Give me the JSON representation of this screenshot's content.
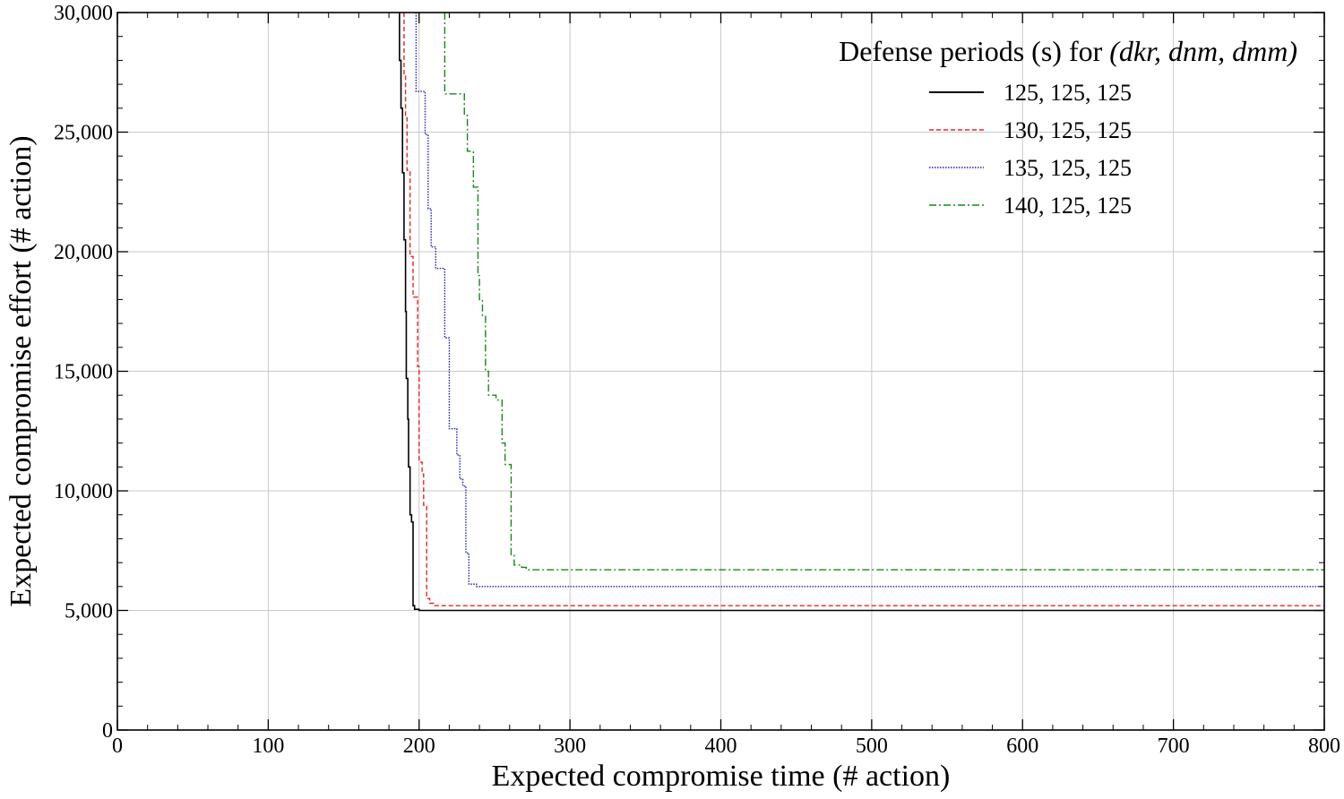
{
  "chart_data": {
    "type": "line",
    "title": "",
    "xlabel": "Expected compromise time (# action)",
    "ylabel": "Expected compromise effort (# action)",
    "xlim": [
      0,
      800
    ],
    "ylim": [
      0,
      30000
    ],
    "x_ticks": [
      0,
      100,
      200,
      300,
      400,
      500,
      600,
      700,
      800
    ],
    "x_tick_labels": [
      "0",
      "100",
      "200",
      "300",
      "400",
      "500",
      "600",
      "700",
      "800"
    ],
    "y_ticks": [
      0,
      5000,
      10000,
      15000,
      20000,
      25000,
      30000
    ],
    "y_tick_labels": [
      "0",
      "5,000",
      "10,000",
      "15,000",
      "20,000",
      "25,000",
      "30,000"
    ],
    "grid": true,
    "legend": {
      "title_prefix": "Defense periods (s) for ",
      "title_vars": "(dkr, dnm, dmm)",
      "placement": "top-right"
    },
    "series": [
      {
        "name": "125, 125, 125",
        "color": "#000000",
        "style": "solid",
        "points": [
          [
            187,
            30000
          ],
          [
            187,
            28000
          ],
          [
            188,
            28000
          ],
          [
            188,
            26000
          ],
          [
            189,
            26000
          ],
          [
            189,
            23300
          ],
          [
            190,
            23300
          ],
          [
            190,
            20500
          ],
          [
            191,
            20500
          ],
          [
            191,
            17500
          ],
          [
            191.5,
            17500
          ],
          [
            191.5,
            14700
          ],
          [
            192.5,
            14700
          ],
          [
            192.5,
            13000
          ],
          [
            193,
            13000
          ],
          [
            193,
            11000
          ],
          [
            194,
            11000
          ],
          [
            194,
            9000
          ],
          [
            195,
            9000
          ],
          [
            195,
            8700
          ],
          [
            196,
            8700
          ],
          [
            196,
            5200
          ],
          [
            197,
            5200
          ],
          [
            197,
            5050
          ],
          [
            200,
            5050
          ],
          [
            200,
            5000
          ],
          [
            800,
            5000
          ]
        ]
      },
      {
        "name": "130, 125, 125",
        "color": "#e8251f",
        "style": "dashed",
        "points": [
          [
            190,
            30000
          ],
          [
            190,
            27400
          ],
          [
            191,
            27400
          ],
          [
            191,
            25600
          ],
          [
            192,
            25600
          ],
          [
            192,
            23400
          ],
          [
            194,
            23400
          ],
          [
            194,
            19800
          ],
          [
            196,
            19800
          ],
          [
            196,
            18100
          ],
          [
            199,
            18100
          ],
          [
            199,
            15200
          ],
          [
            200,
            15200
          ],
          [
            200,
            11200
          ],
          [
            202,
            11200
          ],
          [
            202,
            10700
          ],
          [
            203,
            10700
          ],
          [
            203,
            9400
          ],
          [
            205,
            9400
          ],
          [
            205,
            5500
          ],
          [
            207,
            5500
          ],
          [
            207,
            5300
          ],
          [
            210,
            5300
          ],
          [
            210,
            5200
          ],
          [
            800,
            5200
          ]
        ]
      },
      {
        "name": "135, 125, 125",
        "color": "#1f1fb4",
        "style": "dotted",
        "points": [
          [
            198,
            30000
          ],
          [
            198,
            26700
          ],
          [
            204,
            26700
          ],
          [
            204,
            24900
          ],
          [
            206,
            24900
          ],
          [
            206,
            21800
          ],
          [
            208,
            21800
          ],
          [
            208,
            20200
          ],
          [
            211,
            20200
          ],
          [
            211,
            19300
          ],
          [
            217,
            19300
          ],
          [
            217,
            16400
          ],
          [
            220,
            16400
          ],
          [
            220,
            12600
          ],
          [
            225,
            12600
          ],
          [
            225,
            11500
          ],
          [
            227,
            11500
          ],
          [
            227,
            10500
          ],
          [
            229,
            10500
          ],
          [
            229,
            10200
          ],
          [
            231,
            10200
          ],
          [
            231,
            7400
          ],
          [
            233,
            7400
          ],
          [
            233,
            6100
          ],
          [
            238,
            6100
          ],
          [
            238,
            6000
          ],
          [
            800,
            6000
          ]
        ]
      },
      {
        "name": "140, 125, 125",
        "color": "#148a14",
        "style": "dashdot",
        "points": [
          [
            217,
            30000
          ],
          [
            217,
            26600
          ],
          [
            230,
            26600
          ],
          [
            230,
            25700
          ],
          [
            232,
            25700
          ],
          [
            232,
            24200
          ],
          [
            236,
            24200
          ],
          [
            236,
            22700
          ],
          [
            239,
            22700
          ],
          [
            239,
            19000
          ],
          [
            240,
            19000
          ],
          [
            240,
            18000
          ],
          [
            242,
            18000
          ],
          [
            242,
            17300
          ],
          [
            244,
            17300
          ],
          [
            244,
            15000
          ],
          [
            246,
            15000
          ],
          [
            246,
            14000
          ],
          [
            251,
            14000
          ],
          [
            251,
            13800
          ],
          [
            255,
            13800
          ],
          [
            255,
            12000
          ],
          [
            257,
            12000
          ],
          [
            257,
            11100
          ],
          [
            261,
            11100
          ],
          [
            261,
            7300
          ],
          [
            263,
            7300
          ],
          [
            263,
            6900
          ],
          [
            268,
            6900
          ],
          [
            268,
            6800
          ],
          [
            271,
            6800
          ],
          [
            271,
            6700
          ],
          [
            800,
            6700
          ]
        ]
      }
    ]
  }
}
